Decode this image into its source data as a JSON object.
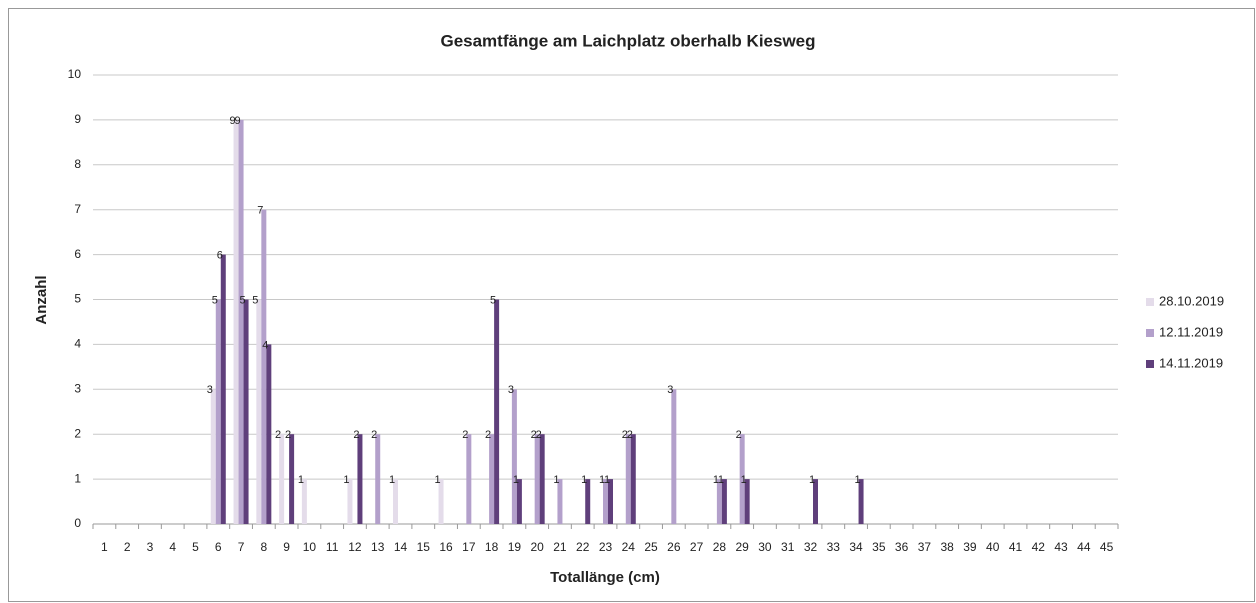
{
  "chart_data": {
    "type": "bar",
    "title": "Gesamtfänge am Laichplatz oberhalb Kiesweg",
    "x_label": "Totallänge (cm)",
    "y_label": "Anzahl",
    "categories": [
      1,
      2,
      3,
      4,
      5,
      6,
      7,
      8,
      9,
      10,
      11,
      12,
      13,
      14,
      15,
      16,
      17,
      18,
      19,
      20,
      21,
      22,
      23,
      24,
      25,
      26,
      27,
      28,
      29,
      30,
      31,
      32,
      33,
      34,
      35,
      36,
      37,
      38,
      39,
      40,
      41,
      42,
      43,
      44,
      45
    ],
    "series": [
      {
        "name": "28.10.2019",
        "color": "#e4dcea",
        "values": [
          0,
          0,
          0,
          0,
          0,
          3,
          9,
          5,
          2,
          1,
          0,
          1,
          0,
          1,
          0,
          1,
          0,
          0,
          0,
          0,
          0,
          0,
          0,
          0,
          0,
          0,
          0,
          0,
          0,
          0,
          0,
          0,
          0,
          0,
          0,
          0,
          0,
          0,
          0,
          0,
          0,
          0,
          0,
          0,
          0
        ]
      },
      {
        "name": "12.11.2019",
        "color": "#b3a0cb",
        "values": [
          0,
          0,
          0,
          0,
          0,
          5,
          9,
          7,
          0,
          0,
          0,
          0,
          2,
          0,
          0,
          0,
          2,
          2,
          3,
          2,
          1,
          0,
          1,
          2,
          0,
          3,
          0,
          1,
          2,
          0,
          0,
          0,
          0,
          0,
          0,
          0,
          0,
          0,
          0,
          0,
          0,
          0,
          0,
          0,
          0
        ]
      },
      {
        "name": "14.11.2019",
        "color": "#5f3f7b",
        "values": [
          0,
          0,
          0,
          0,
          0,
          6,
          5,
          4,
          2,
          0,
          0,
          2,
          0,
          0,
          0,
          0,
          0,
          5,
          1,
          2,
          0,
          1,
          1,
          2,
          0,
          0,
          0,
          1,
          1,
          0,
          0,
          1,
          0,
          1,
          0,
          0,
          0,
          0,
          0,
          0,
          0,
          0,
          0,
          0,
          0
        ]
      }
    ],
    "ylim": [
      0,
      10
    ],
    "yticks": [
      0,
      1,
      2,
      3,
      4,
      5,
      6,
      7,
      8,
      9,
      10
    ],
    "grid": true,
    "legend": "right"
  }
}
